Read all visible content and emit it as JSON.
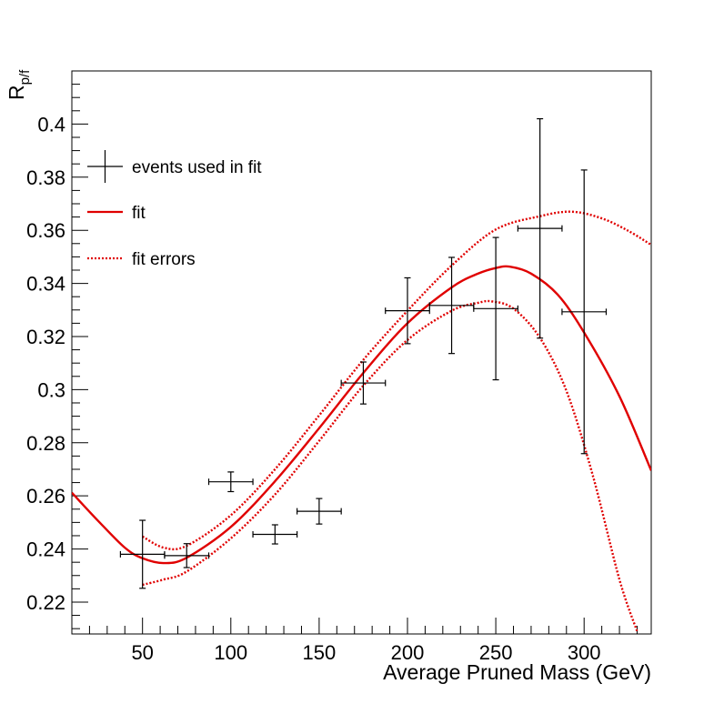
{
  "chart_data": {
    "type": "scatter",
    "xlabel": "Average Pruned Mass (GeV)",
    "ylabel": "R",
    "ylabel_subscript": "p/f",
    "xlim": [
      10,
      338
    ],
    "ylim": [
      0.208,
      0.42
    ],
    "x_ticks": [
      50,
      100,
      150,
      200,
      250,
      300
    ],
    "x_tick_labels": [
      "50",
      "100",
      "150",
      "200",
      "250",
      "300"
    ],
    "y_ticks": [
      0.22,
      0.24,
      0.26,
      0.28,
      0.3,
      0.32,
      0.34,
      0.36,
      0.38,
      0.4
    ],
    "y_tick_labels": [
      "0.22",
      "0.24",
      "0.26",
      "0.28",
      "0.3",
      "0.32",
      "0.34",
      "0.36",
      "0.38",
      "0.4"
    ],
    "grid": false,
    "legend_position": "top-left",
    "colors": {
      "points": "#000000",
      "fit": "#e00000"
    },
    "series": [
      {
        "name": "events used in fit",
        "style": "errorbar",
        "points": [
          {
            "x": 50,
            "y": 0.238,
            "xerr": 12.5,
            "yerr": 0.0128
          },
          {
            "x": 75,
            "y": 0.2375,
            "xerr": 12.5,
            "yerr": 0.0045
          },
          {
            "x": 100,
            "y": 0.2653,
            "xerr": 12.5,
            "yerr": 0.0037
          },
          {
            "x": 125,
            "y": 0.2455,
            "xerr": 12.5,
            "yerr": 0.0036
          },
          {
            "x": 150,
            "y": 0.2542,
            "xerr": 12.5,
            "yerr": 0.0048
          },
          {
            "x": 175,
            "y": 0.3025,
            "xerr": 12.5,
            "yerr": 0.0079
          },
          {
            "x": 200,
            "y": 0.3297,
            "xerr": 12.5,
            "yerr": 0.0124
          },
          {
            "x": 225,
            "y": 0.3317,
            "xerr": 12.5,
            "yerr": 0.0181
          },
          {
            "x": 250,
            "y": 0.3305,
            "xerr": 12.5,
            "yerr": 0.0268
          },
          {
            "x": 275,
            "y": 0.3607,
            "xerr": 12.5,
            "yerr": 0.0413
          },
          {
            "x": 300,
            "y": 0.3293,
            "xerr": 12.5,
            "yerr": 0.0534
          }
        ]
      },
      {
        "name": "fit",
        "style": "solid",
        "x": [
          10,
          25,
          40,
          50,
          62,
          75,
          100,
          125,
          150,
          175,
          200,
          225,
          240,
          250,
          258,
          270,
          285,
          300,
          320,
          338
        ],
        "y": [
          0.2612,
          0.2505,
          0.2405,
          0.2365,
          0.2347,
          0.2367,
          0.2483,
          0.2655,
          0.2855,
          0.3063,
          0.325,
          0.3385,
          0.3437,
          0.3458,
          0.3463,
          0.3437,
          0.3358,
          0.3215,
          0.2975,
          0.2695
        ]
      },
      {
        "name": "fit errors",
        "style": "dotted",
        "upper": {
          "x": [
            50,
            62,
            75,
            100,
            125,
            150,
            175,
            200,
            225,
            250,
            275,
            293,
            310,
            325,
            338
          ],
          "y": [
            0.2447,
            0.2405,
            0.2412,
            0.2527,
            0.27,
            0.2903,
            0.3112,
            0.3297,
            0.3467,
            0.3603,
            0.3653,
            0.367,
            0.3645,
            0.3598,
            0.3545
          ]
        },
        "lower": {
          "x": [
            50,
            62,
            75,
            100,
            125,
            150,
            175,
            200,
            225,
            240,
            248,
            260,
            275,
            290,
            305,
            320,
            330
          ],
          "y": [
            0.2265,
            0.2285,
            0.2315,
            0.244,
            0.2605,
            0.2807,
            0.3015,
            0.3187,
            0.3297,
            0.3327,
            0.3332,
            0.3305,
            0.3195,
            0.2995,
            0.2675,
            0.2285,
            0.209
          ]
        }
      }
    ]
  }
}
